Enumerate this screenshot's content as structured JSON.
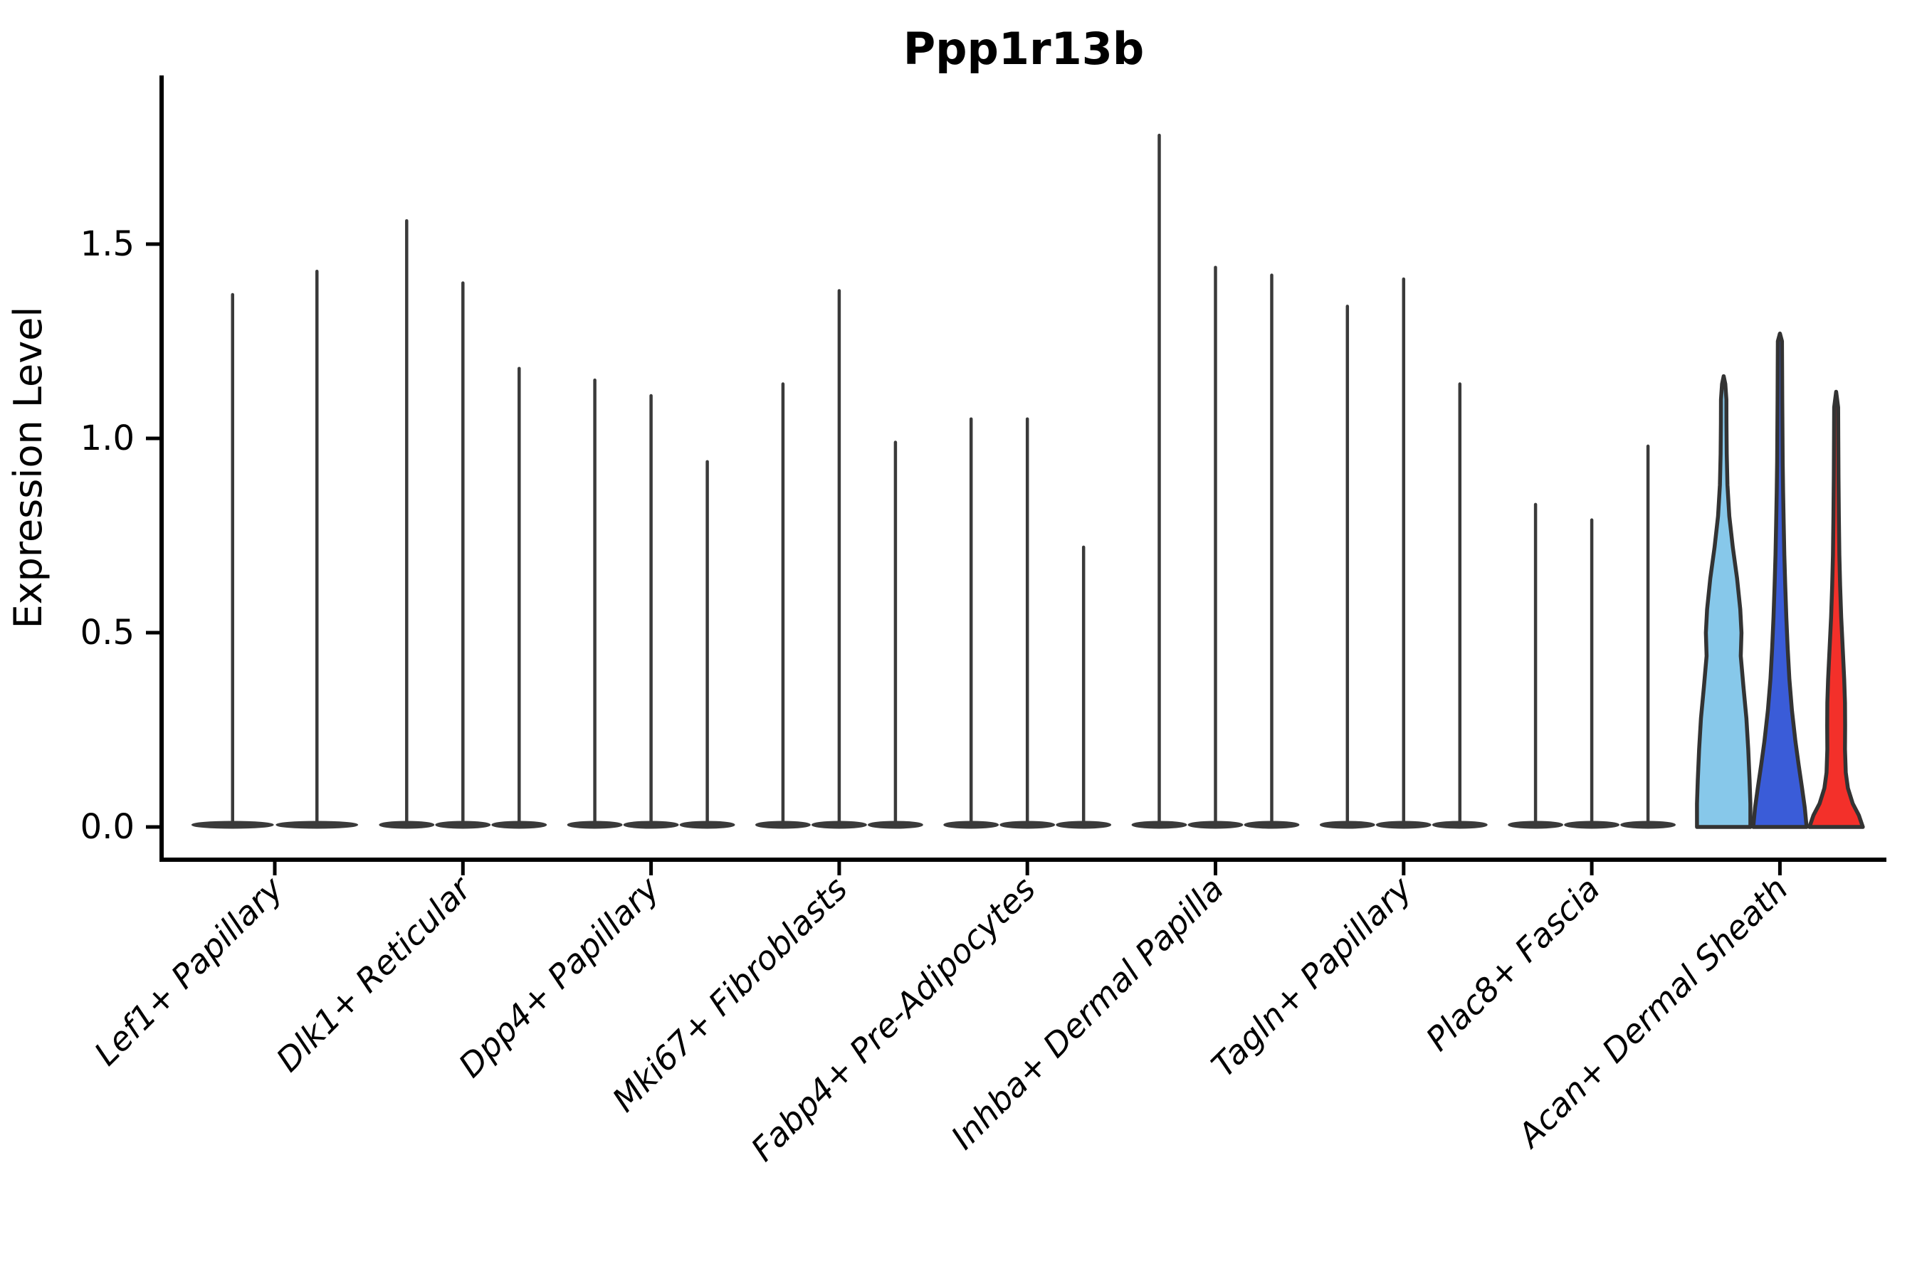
{
  "chart_data": {
    "type": "violin",
    "title": "Ppp1r13b",
    "ylabel": "Expression Level",
    "xlabel": "",
    "ylim": [
      -0.08,
      1.93
    ],
    "grid": false,
    "legend": "none",
    "yticks": [
      {
        "label": "0.0",
        "value": 0.0
      },
      {
        "label": "0.5",
        "value": 0.5
      },
      {
        "label": "1.0",
        "value": 1.0
      },
      {
        "label": "1.5",
        "value": 1.5
      }
    ],
    "categories": [
      "Lef1+ Papillary",
      "Dlk1+ Reticular",
      "Dpp4+ Papillary",
      "Mki67+ Fibroblasts",
      "Fabp4+ Pre-Adipocytes",
      "Inhba+ Dermal Papilla",
      "Tagln+ Papillary",
      "Plac8+ Fascia",
      "Acan+ Dermal Sheath"
    ],
    "colors": {
      "spike_violin": "#3a3a3a",
      "violin_outline": "#333333",
      "axis": "#000000",
      "split_1": "#87C8EA",
      "split_2": "#3A5CD8",
      "split_3": "#F3302A"
    },
    "groups": [
      {
        "category": "Lef1+ Papillary",
        "violins": [
          {
            "max": 1.37,
            "style": "spike",
            "color": "#3a3a3a"
          },
          {
            "max": 1.43,
            "style": "spike",
            "color": "#3a3a3a"
          }
        ]
      },
      {
        "category": "Dlk1+ Reticular",
        "violins": [
          {
            "max": 1.56,
            "style": "spike",
            "color": "#3a3a3a"
          },
          {
            "max": 1.4,
            "style": "spike",
            "color": "#3a3a3a"
          },
          {
            "max": 1.18,
            "style": "spike",
            "color": "#3a3a3a"
          }
        ]
      },
      {
        "category": "Dpp4+ Papillary",
        "violins": [
          {
            "max": 1.15,
            "style": "spike",
            "color": "#3a3a3a"
          },
          {
            "max": 1.11,
            "style": "spike",
            "color": "#3a3a3a"
          },
          {
            "max": 0.94,
            "style": "spike",
            "color": "#3a3a3a"
          }
        ]
      },
      {
        "category": "Mki67+ Fibroblasts",
        "violins": [
          {
            "max": 1.14,
            "style": "spike",
            "color": "#3a3a3a"
          },
          {
            "max": 1.38,
            "style": "spike",
            "color": "#3a3a3a"
          },
          {
            "max": 0.99,
            "style": "spike",
            "color": "#3a3a3a"
          }
        ]
      },
      {
        "category": "Fabp4+ Pre-Adipocytes",
        "violins": [
          {
            "max": 1.05,
            "style": "spike",
            "color": "#3a3a3a"
          },
          {
            "max": 1.05,
            "style": "spike",
            "color": "#3a3a3a"
          },
          {
            "max": 0.72,
            "style": "spike",
            "color": "#3a3a3a"
          }
        ]
      },
      {
        "category": "Inhba+ Dermal Papilla",
        "violins": [
          {
            "max": 1.78,
            "style": "spike",
            "color": "#3a3a3a"
          },
          {
            "max": 1.44,
            "style": "spike",
            "color": "#3a3a3a"
          },
          {
            "max": 1.42,
            "style": "spike",
            "color": "#3a3a3a"
          }
        ]
      },
      {
        "category": "Tagln+ Papillary",
        "violins": [
          {
            "max": 1.34,
            "style": "spike",
            "color": "#3a3a3a"
          },
          {
            "max": 1.41,
            "style": "spike",
            "color": "#3a3a3a"
          },
          {
            "max": 1.14,
            "style": "spike",
            "color": "#3a3a3a"
          }
        ]
      },
      {
        "category": "Plac8+ Fascia",
        "violins": [
          {
            "max": 0.83,
            "style": "spike",
            "color": "#3a3a3a"
          },
          {
            "max": 0.79,
            "style": "spike",
            "color": "#3a3a3a"
          },
          {
            "max": 0.98,
            "style": "spike",
            "color": "#3a3a3a"
          }
        ]
      },
      {
        "category": "Acan+ Dermal Sheath",
        "violins": [
          {
            "max": 1.16,
            "style": "violin",
            "color": "#87C8EA",
            "shape": [
              [
                0.0,
                1.0
              ],
              [
                0.06,
                1.0
              ],
              [
                0.12,
                0.97
              ],
              [
                0.2,
                0.92
              ],
              [
                0.28,
                0.85
              ],
              [
                0.36,
                0.74
              ],
              [
                0.44,
                0.64
              ],
              [
                0.5,
                0.665
              ],
              [
                0.56,
                0.62
              ],
              [
                0.64,
                0.5
              ],
              [
                0.72,
                0.34
              ],
              [
                0.8,
                0.21
              ],
              [
                0.88,
                0.14
              ],
              [
                0.96,
                0.115
              ],
              [
                1.04,
                0.105
              ],
              [
                1.1,
                0.1
              ],
              [
                1.14,
                0.06
              ],
              [
                1.16,
                0.0
              ]
            ]
          },
          {
            "max": 1.27,
            "style": "violin",
            "color": "#3A5CD8",
            "shape": [
              [
                0.0,
                1.0
              ],
              [
                0.05,
                0.93
              ],
              [
                0.1,
                0.83
              ],
              [
                0.16,
                0.7
              ],
              [
                0.22,
                0.58
              ],
              [
                0.3,
                0.45
              ],
              [
                0.38,
                0.355
              ],
              [
                0.46,
                0.29
              ],
              [
                0.54,
                0.24
              ],
              [
                0.62,
                0.2
              ],
              [
                0.7,
                0.165
              ],
              [
                0.78,
                0.14
              ],
              [
                0.86,
                0.12
              ],
              [
                0.94,
                0.105
              ],
              [
                1.02,
                0.095
              ],
              [
                1.1,
                0.088
              ],
              [
                1.18,
                0.082
              ],
              [
                1.25,
                0.078
              ],
              [
                1.27,
                0.0
              ]
            ]
          },
          {
            "max": 1.12,
            "style": "violin",
            "color": "#F3302A",
            "shape": [
              [
                0.0,
                1.0
              ],
              [
                0.03,
                0.85
              ],
              [
                0.06,
                0.62
              ],
              [
                0.1,
                0.44
              ],
              [
                0.14,
                0.36
              ],
              [
                0.2,
                0.33
              ],
              [
                0.26,
                0.335
              ],
              [
                0.32,
                0.33
              ],
              [
                0.38,
                0.3
              ],
              [
                0.46,
                0.245
              ],
              [
                0.54,
                0.19
              ],
              [
                0.62,
                0.15
              ],
              [
                0.7,
                0.12
              ],
              [
                0.8,
                0.1
              ],
              [
                0.9,
                0.088
              ],
              [
                1.0,
                0.08
              ],
              [
                1.08,
                0.075
              ],
              [
                1.12,
                0.0
              ]
            ]
          }
        ]
      }
    ]
  }
}
